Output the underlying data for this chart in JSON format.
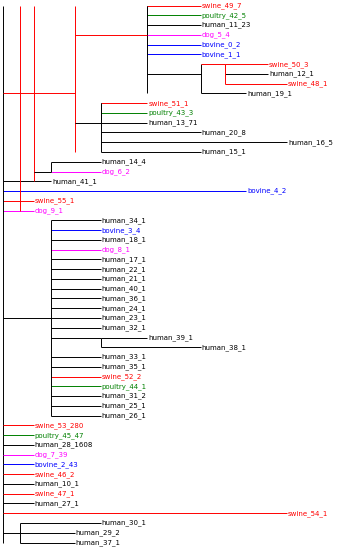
{
  "figsize": [
    3.41,
    5.53
  ],
  "dpi": 100,
  "fs": 5.0,
  "lw": 0.7,
  "colors": {
    "human": "#000000",
    "swine": "#ff0000",
    "poultry": "#008000",
    "dog": "#ff00ff",
    "bovine": "#0000ff"
  },
  "taxa": [
    [
      "swine_49_7",
      "swine"
    ],
    [
      "poultry_42_5",
      "poultry"
    ],
    [
      "human_11_23",
      "human"
    ],
    [
      "dog_5_4",
      "dog"
    ],
    [
      "bovine_0_2",
      "bovine"
    ],
    [
      "bovine_1_1",
      "bovine"
    ],
    [
      "swine_50_3",
      "swine"
    ],
    [
      "human_12_1",
      "human"
    ],
    [
      "swine_48_1",
      "swine"
    ],
    [
      "human_19_1",
      "human"
    ],
    [
      "swine_51_1",
      "swine"
    ],
    [
      "poultry_43_3",
      "poultry"
    ],
    [
      "human_13_71",
      "human"
    ],
    [
      "human_20_8",
      "human"
    ],
    [
      "human_16_5",
      "human"
    ],
    [
      "human_15_1",
      "human"
    ],
    [
      "human_14_4",
      "human"
    ],
    [
      "dog_6_2",
      "dog"
    ],
    [
      "human_41_1",
      "human"
    ],
    [
      "bovine_4_2",
      "bovine"
    ],
    [
      "swine_55_1",
      "swine"
    ],
    [
      "dog_9_1",
      "dog"
    ],
    [
      "human_34_1",
      "human"
    ],
    [
      "bovine_3_4",
      "bovine"
    ],
    [
      "human_18_1",
      "human"
    ],
    [
      "dog_8_1",
      "dog"
    ],
    [
      "human_17_1",
      "human"
    ],
    [
      "human_22_1",
      "human"
    ],
    [
      "human_21_1",
      "human"
    ],
    [
      "human_40_1",
      "human"
    ],
    [
      "human_36_1",
      "human"
    ],
    [
      "human_24_1",
      "human"
    ],
    [
      "human_23_1",
      "human"
    ],
    [
      "human_32_1",
      "human"
    ],
    [
      "human_39_1",
      "human"
    ],
    [
      "human_38_1",
      "human"
    ],
    [
      "human_33_1",
      "human"
    ],
    [
      "human_35_1",
      "human"
    ],
    [
      "swine_52_2",
      "swine"
    ],
    [
      "poultry_44_1",
      "poultry"
    ],
    [
      "human_31_2",
      "human"
    ],
    [
      "human_25_1",
      "human"
    ],
    [
      "human_26_1",
      "human"
    ],
    [
      "swine_53_280",
      "swine"
    ],
    [
      "poultry_45_47",
      "poultry"
    ],
    [
      "human_28_1608",
      "human"
    ],
    [
      "dog_7_39",
      "dog"
    ],
    [
      "bovine_2_43",
      "bovine"
    ],
    [
      "swine_46_2",
      "swine"
    ],
    [
      "human_10_1",
      "human"
    ],
    [
      "swine_47_1",
      "swine"
    ],
    [
      "human_27_1",
      "human"
    ],
    [
      "swine_54_1",
      "swine"
    ],
    [
      "human_30_1",
      "human"
    ],
    [
      "human_29_2",
      "human"
    ],
    [
      "human_37_1",
      "human"
    ]
  ]
}
